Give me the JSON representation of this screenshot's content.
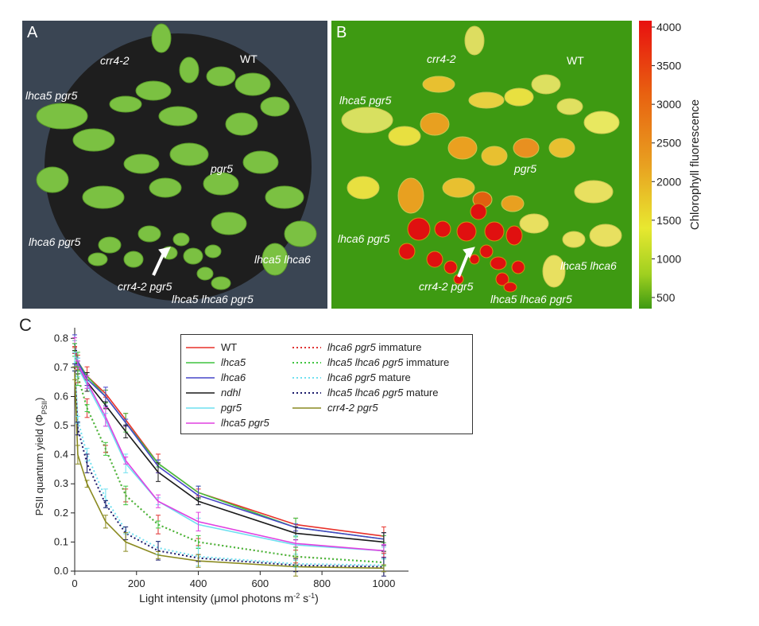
{
  "panel_a": {
    "label": "A",
    "plants": {
      "crr4_2": "crr4-2",
      "wt": "WT",
      "lhca5_pgr5": "lhca5 pgr5",
      "pgr5": "pgr5",
      "lhca6_pgr5": "lhca6 pgr5",
      "lhca5_lhca6": "lhca5 lhca6",
      "crr4_2_pgr5": "crr4-2 pgr5",
      "lhca5_lhca6_pgr5": "lhca5 lhca6 pgr5"
    },
    "colors": {
      "background": "#3a4553",
      "soil": "#1e1e1e",
      "leaf": "#7bc142"
    }
  },
  "panel_b": {
    "label": "B",
    "plants": {
      "crr4_2": "crr4-2",
      "wt": "WT",
      "lhca5_pgr5": "lhca5 pgr5",
      "pgr5": "pgr5",
      "lhca6_pgr5": "lhca6 pgr5",
      "lhca5_lhca6": "lhca5 lhca6",
      "crr4_2_pgr5": "crr4-2 pgr5",
      "lhca5_lhca6_pgr5": "lhca5 lhca6 pgr5"
    },
    "colors": {
      "background": "#3e9a12",
      "low": "#e6e82a",
      "high": "#e01010"
    },
    "colorbar": {
      "title": "Chlorophyll fluorescence",
      "ticks": [
        "4000",
        "3500",
        "3000",
        "2500",
        "2000",
        "1500",
        "1000",
        "500"
      ]
    }
  },
  "chart_data": {
    "type": "line",
    "panel_label": "C",
    "xlabel": "Light intensity (μmol photons m-2 s-1)",
    "ylabel": "PSII quantum yield (ΦPSII)",
    "xlim": [
      0,
      1080
    ],
    "ylim": [
      0,
      0.82
    ],
    "xticks": [
      "0",
      "200",
      "400",
      "600",
      "800",
      "1000"
    ],
    "yticks": [
      "0.0",
      "0.1",
      "0.2",
      "0.3",
      "0.4",
      "0.5",
      "0.6",
      "0.7",
      "0.8"
    ],
    "x": [
      0,
      10,
      40,
      100,
      165,
      270,
      400,
      715,
      1000
    ],
    "series": [
      {
        "name": "WT",
        "italic": false,
        "color": "#e8312a",
        "dash": "solid",
        "values": [
          0.78,
          0.72,
          0.67,
          0.61,
          0.52,
          0.37,
          0.27,
          0.16,
          0.12
        ]
      },
      {
        "name": "lhca5",
        "italic": true,
        "color": "#3fc43f",
        "dash": "solid",
        "values": [
          0.78,
          0.72,
          0.67,
          0.6,
          0.51,
          0.37,
          0.27,
          0.15,
          0.11
        ]
      },
      {
        "name": "lhca6",
        "italic": true,
        "color": "#4646c8",
        "dash": "solid",
        "values": [
          0.78,
          0.72,
          0.66,
          0.6,
          0.51,
          0.36,
          0.26,
          0.15,
          0.11
        ]
      },
      {
        "name": "ndhl",
        "italic": true,
        "color": "#1a1a1a",
        "dash": "solid",
        "values": [
          0.77,
          0.7,
          0.65,
          0.57,
          0.48,
          0.34,
          0.24,
          0.13,
          0.1
        ]
      },
      {
        "name": "pgr5",
        "italic": true,
        "color": "#6fe0f0",
        "dash": "solid",
        "values": [
          0.77,
          0.7,
          0.64,
          0.52,
          0.37,
          0.24,
          0.16,
          0.09,
          0.07
        ]
      },
      {
        "name": "lhca5 pgr5",
        "italic": true,
        "color": "#e040e0",
        "dash": "solid",
        "values": [
          0.77,
          0.71,
          0.65,
          0.53,
          0.38,
          0.24,
          0.17,
          0.095,
          0.07
        ]
      },
      {
        "name": "lhca6 pgr5 immature",
        "italic": true,
        "color": "#e03030",
        "dash": "dotted",
        "values": [
          0.76,
          0.67,
          0.56,
          0.42,
          0.26,
          0.16,
          0.1,
          0.05,
          0.03
        ]
      },
      {
        "name": "lhca5 lhca6 pgr5 immature",
        "italic": true,
        "color": "#3fc43f",
        "dash": "dotted",
        "values": [
          0.76,
          0.67,
          0.56,
          0.42,
          0.26,
          0.16,
          0.1,
          0.05,
          0.03
        ]
      },
      {
        "name": "lhca6 pgr5 mature",
        "italic": true,
        "color": "#6fe0f0",
        "dash": "dotted",
        "values": [
          0.72,
          0.52,
          0.4,
          0.25,
          0.14,
          0.08,
          0.05,
          0.025,
          0.02
        ]
      },
      {
        "name": "lhca5 lhca6 pgr5 mature",
        "italic": true,
        "color": "#1a1a6a",
        "dash": "dotted",
        "values": [
          0.7,
          0.49,
          0.37,
          0.23,
          0.13,
          0.07,
          0.045,
          0.02,
          0.015
        ]
      },
      {
        "name": "crr4-2 pgr5",
        "italic": true,
        "color": "#8a8a20",
        "dash": "solid",
        "values": [
          0.68,
          0.4,
          0.3,
          0.17,
          0.1,
          0.055,
          0.035,
          0.015,
          0.01
        ]
      }
    ],
    "legend": {
      "col1": [
        {
          "italic_part": "",
          "plain_part": "WT"
        },
        {
          "italic_part": "lhca5",
          "plain_part": ""
        },
        {
          "italic_part": "lhca6",
          "plain_part": ""
        },
        {
          "italic_part": "ndhl",
          "plain_part": ""
        },
        {
          "italic_part": "pgr5",
          "plain_part": ""
        },
        {
          "italic_part": "lhca5 pgr5",
          "plain_part": ""
        }
      ],
      "col2": [
        {
          "italic_part": "lhca6 pgr5",
          "plain_part": " immature"
        },
        {
          "italic_part": "lhca5 lhca6 pgr5",
          "plain_part": " immature"
        },
        {
          "italic_part": "lhca6 pgr5",
          "plain_part": " mature"
        },
        {
          "italic_part": "lhca5 lhca6 pgr5",
          "plain_part": " mature"
        },
        {
          "italic_part": "crr4-2 pgr5",
          "plain_part": ""
        }
      ]
    }
  }
}
